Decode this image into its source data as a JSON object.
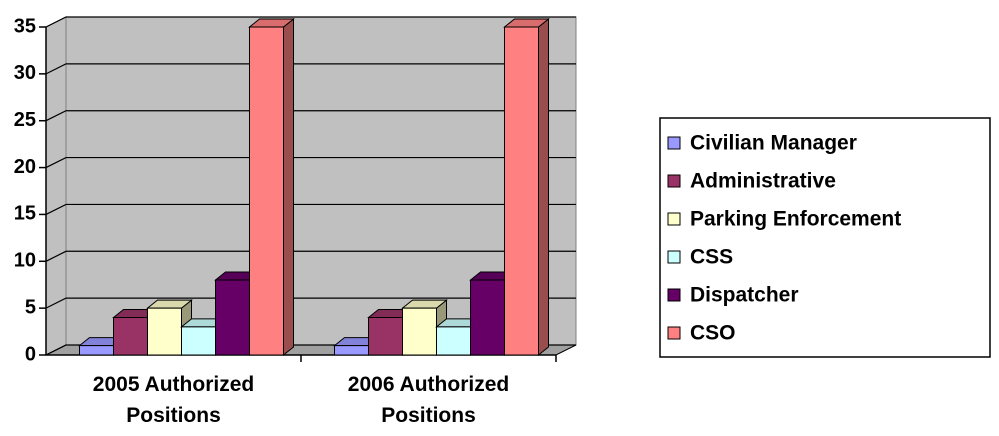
{
  "chart_data": {
    "type": "bar3d",
    "categories": [
      "2005 Authorized Positions",
      "2006 Authorized Positions"
    ],
    "series": [
      {
        "name": "Civilian Manager",
        "color": "#9999ff",
        "values": [
          1,
          1
        ]
      },
      {
        "name": "Administrative",
        "color": "#993366",
        "values": [
          4,
          4
        ]
      },
      {
        "name": "Parking Enforcement",
        "color": "#ffffcc",
        "values": [
          5,
          5
        ]
      },
      {
        "name": "CSS",
        "color": "#ccffff",
        "values": [
          3,
          3
        ]
      },
      {
        "name": "Dispatcher",
        "color": "#660066",
        "values": [
          8,
          8
        ]
      },
      {
        "name": "CSO",
        "color": "#ff8080",
        "values": [
          35,
          35
        ]
      }
    ],
    "ylim": [
      0,
      35
    ],
    "yticks": [
      0,
      5,
      10,
      15,
      20,
      25,
      30,
      35
    ],
    "grid": true,
    "legend": "right"
  }
}
